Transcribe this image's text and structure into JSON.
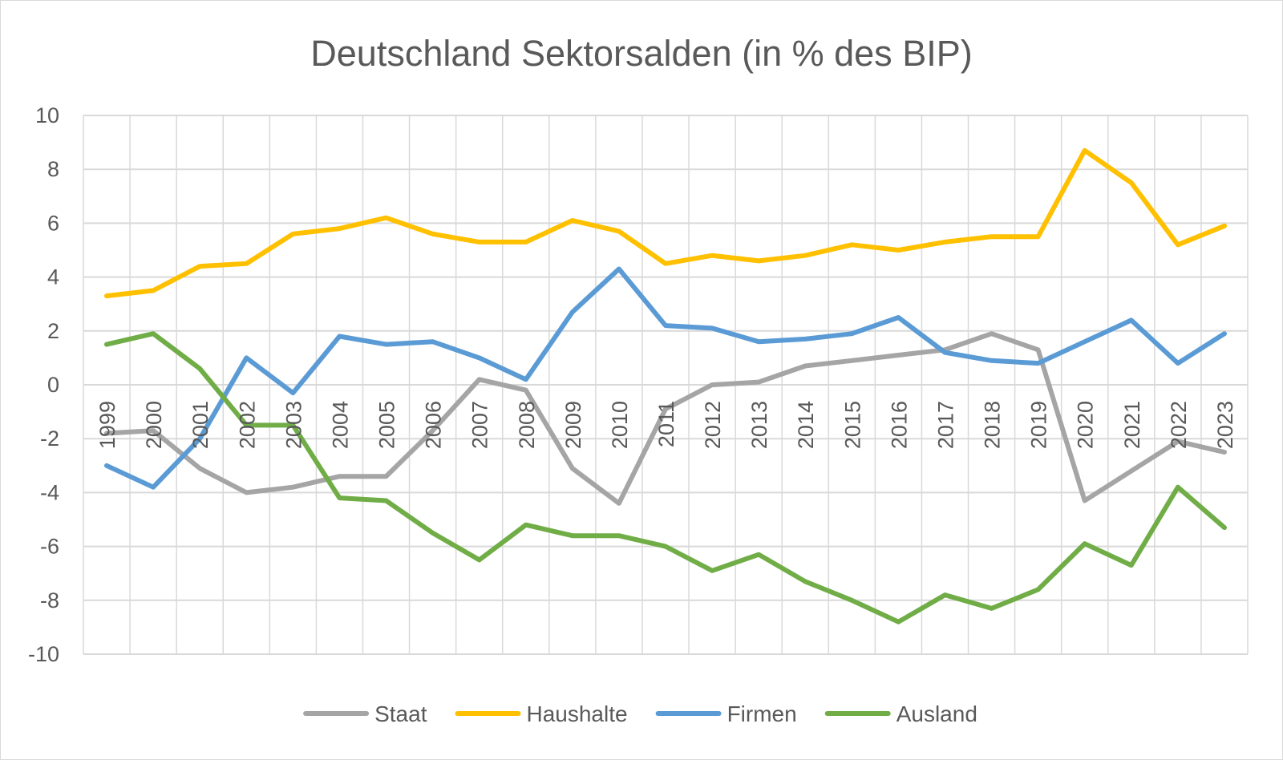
{
  "chart_data": {
    "type": "line",
    "title": "Deutschland Sektorsalden (in % des BIP)",
    "xlabel": "",
    "ylabel": "",
    "ylim": [
      -10,
      10
    ],
    "yticks": [
      "10",
      "8",
      "6",
      "4",
      "2",
      "0",
      "-2",
      "-4",
      "-6",
      "-8",
      "-10"
    ],
    "ytick_values": [
      10,
      8,
      6,
      4,
      2,
      0,
      -2,
      -4,
      -6,
      -8,
      -10
    ],
    "grid": true,
    "legend_position": "bottom",
    "categories": [
      "1999",
      "2000",
      "2001",
      "2002",
      "2003",
      "2004",
      "2005",
      "2006",
      "2007",
      "2008",
      "2009",
      "2010",
      "2011",
      "2012",
      "2013",
      "2014",
      "2015",
      "2016",
      "2017",
      "2018",
      "2019",
      "2020",
      "2021",
      "2022",
      "2023"
    ],
    "series": [
      {
        "name": "Staat",
        "color": "#a5a5a5",
        "values": [
          -1.8,
          -1.7,
          -3.1,
          -4.0,
          -3.8,
          -3.4,
          -3.4,
          -1.7,
          0.2,
          -0.2,
          -3.1,
          -4.4,
          -0.9,
          0.0,
          0.1,
          0.7,
          0.9,
          1.1,
          1.3,
          1.9,
          1.3,
          -4.3,
          -3.2,
          -2.1,
          -2.5
        ]
      },
      {
        "name": "Haushalte",
        "color": "#ffc000",
        "values": [
          3.3,
          3.5,
          4.4,
          4.5,
          5.6,
          5.8,
          6.2,
          5.6,
          5.3,
          5.3,
          6.1,
          5.7,
          4.5,
          4.8,
          4.6,
          4.8,
          5.2,
          5.0,
          5.3,
          5.5,
          5.5,
          8.7,
          7.5,
          5.2,
          5.9
        ]
      },
      {
        "name": "Firmen",
        "color": "#5b9bd5",
        "values": [
          -3.0,
          -3.8,
          -2.0,
          1.0,
          -0.3,
          1.8,
          1.5,
          1.6,
          1.0,
          0.2,
          2.7,
          4.3,
          2.2,
          2.1,
          1.6,
          1.7,
          1.9,
          2.5,
          1.2,
          0.9,
          0.8,
          1.6,
          2.4,
          0.8,
          1.9
        ]
      },
      {
        "name": "Ausland",
        "color": "#70ad47",
        "values": [
          1.5,
          1.9,
          0.6,
          -1.5,
          -1.5,
          -4.2,
          -4.3,
          -5.5,
          -6.5,
          -5.2,
          -5.6,
          -5.6,
          -6.0,
          -6.9,
          -6.3,
          -7.3,
          -8.0,
          -8.8,
          -7.8,
          -8.3,
          -7.6,
          -5.9,
          -6.7,
          -3.8,
          -5.3
        ]
      }
    ]
  }
}
